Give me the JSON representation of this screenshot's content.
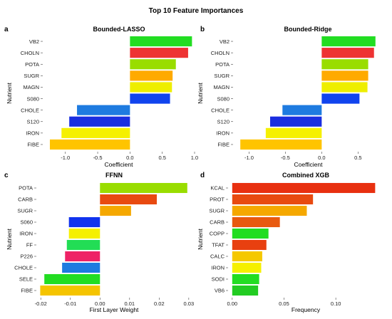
{
  "figure": {
    "title": "Top 10 Feature Importances"
  },
  "chart_data": [
    {
      "type": "bar",
      "orientation": "horizontal",
      "letter": "a",
      "title": "Bounded-LASSO",
      "xlabel": "Coefficient",
      "ylabel": "Nutrient",
      "xlim": [
        -1.35,
        1.0
      ],
      "xticks": [
        -1.0,
        -0.5,
        0.0,
        0.5,
        1.0
      ],
      "xtick_labels": [
        "-1.0",
        "-0.5",
        "0.0",
        "0.5",
        "1.0"
      ],
      "categories": [
        "VB2",
        "CHOLN",
        "POTA",
        "SUGR",
        "MAGN",
        "S080",
        "CHOLE",
        "S120",
        "IRON",
        "FIBE"
      ],
      "values": [
        0.96,
        0.9,
        0.71,
        0.66,
        0.65,
        0.62,
        -0.82,
        -0.94,
        -1.06,
        -1.24
      ],
      "colors": [
        "#22dd22",
        "#ee3333",
        "#99dd00",
        "#ffaa00",
        "#eeee00",
        "#1144ee",
        "#1e7be0",
        "#1a2ee0",
        "#f5f000",
        "#ffc400"
      ]
    },
    {
      "type": "bar",
      "orientation": "horizontal",
      "letter": "b",
      "title": "Bounded-Ridge",
      "xlabel": "Coefficient",
      "ylabel": "Nutrient",
      "xlim": [
        -1.22,
        0.85
      ],
      "xticks": [
        -1.0,
        -0.5,
        0.0,
        0.5
      ],
      "xtick_labels": [
        "-1.0",
        "-0.5",
        "0.0",
        "0.5"
      ],
      "categories": [
        "VB2",
        "CHOLN",
        "POTA",
        "SUGR",
        "MAGN",
        "S080",
        "CHOLE",
        "S120",
        "IRON",
        "FIBE"
      ],
      "values": [
        0.74,
        0.72,
        0.64,
        0.64,
        0.63,
        0.52,
        -0.54,
        -0.71,
        -0.77,
        -1.12
      ],
      "colors": [
        "#22dd22",
        "#ee3333",
        "#99dd00",
        "#ffaa00",
        "#eeee00",
        "#1144ee",
        "#1e7be0",
        "#1a2ee0",
        "#f5f000",
        "#ffc400"
      ]
    },
    {
      "type": "bar",
      "orientation": "horizontal",
      "letter": "c",
      "title": "FFNN",
      "xlabel": "First Layer Weight",
      "ylabel": "Nutrient",
      "xlim": [
        -0.0215,
        0.031
      ],
      "xticks": [
        -0.02,
        -0.01,
        0.0,
        0.01,
        0.02,
        0.03
      ],
      "xtick_labels": [
        "-0.02",
        "-0.01",
        "0.00",
        "0.01",
        "0.02",
        "0.03"
      ],
      "categories": [
        "POTA",
        "CARB",
        "SUGR",
        "S060",
        "IRON",
        "FF",
        "P226",
        "CHOLE",
        "SELE",
        "FIBE"
      ],
      "values": [
        0.0295,
        0.0192,
        0.0105,
        -0.0105,
        -0.0105,
        -0.0112,
        -0.0118,
        -0.0128,
        -0.0188,
        -0.0202
      ],
      "colors": [
        "#99dd00",
        "#e84a10",
        "#f5a800",
        "#1133ee",
        "#f5f000",
        "#22dd55",
        "#ee2266",
        "#1e7be0",
        "#22dd22",
        "#f5c400"
      ]
    },
    {
      "type": "bar",
      "orientation": "horizontal",
      "letter": "d",
      "title": "Combined XGB",
      "xlabel": "Frequency",
      "ylabel": "Nutrient",
      "xlim": [
        -0.004,
        0.146
      ],
      "xticks": [
        0.0,
        0.05,
        0.1
      ],
      "xtick_labels": [
        "0.00",
        "0.05",
        "0.10"
      ],
      "categories": [
        "KCAL",
        "PROT",
        "SUGR",
        "CARB",
        "COPP",
        "TFAT",
        "CALC",
        "IRON",
        "SODI",
        "VB6"
      ],
      "values": [
        0.138,
        0.078,
        0.072,
        0.046,
        0.035,
        0.033,
        0.029,
        0.028,
        0.026,
        0.025
      ],
      "colors": [
        "#e83010",
        "#e84a10",
        "#f5a800",
        "#e85a10",
        "#22dd22",
        "#e84010",
        "#f5c800",
        "#f5f000",
        "#22dd22",
        "#22cc22"
      ]
    }
  ]
}
